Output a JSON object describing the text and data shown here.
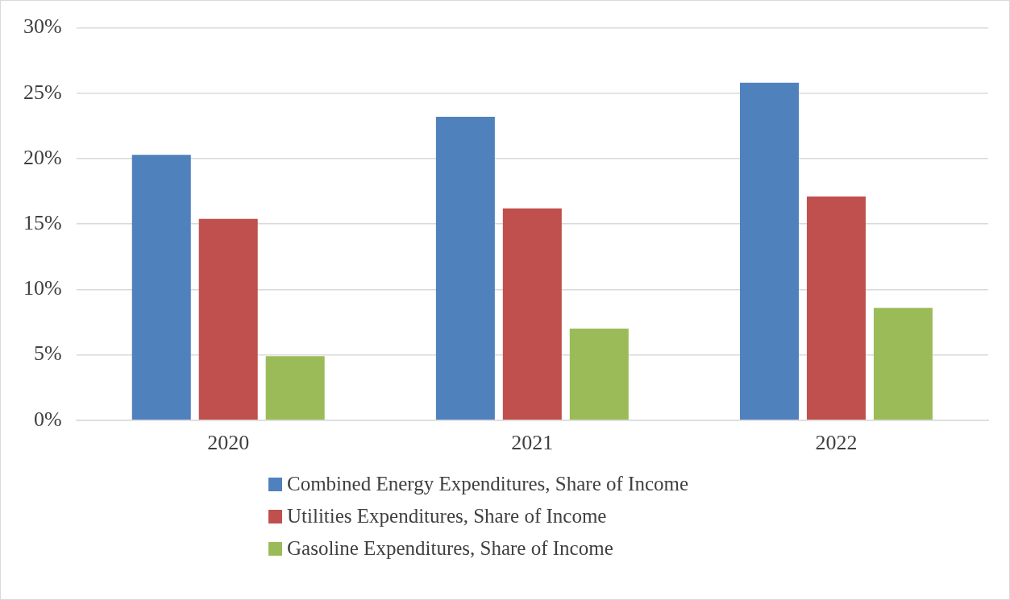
{
  "chart_data": {
    "type": "bar",
    "categories": [
      "2020",
      "2021",
      "2022"
    ],
    "series": [
      {
        "name": "Combined Energy Expenditures, Share of Income",
        "color": "#4f81bd",
        "values": [
          20.3,
          23.2,
          25.8
        ]
      },
      {
        "name": "Utilities Expenditures, Share of Income",
        "color": "#c0504d",
        "values": [
          15.4,
          16.2,
          17.1
        ]
      },
      {
        "name": "Gasoline Expenditures, Share of Income",
        "color": "#9bbb59",
        "values": [
          4.9,
          7.0,
          8.6
        ]
      }
    ],
    "ylim": [
      0,
      30
    ],
    "yticks": [
      {
        "value": 0,
        "label": "0%"
      },
      {
        "value": 5,
        "label": "5%"
      },
      {
        "value": 10,
        "label": "10%"
      },
      {
        "value": 15,
        "label": "15%"
      },
      {
        "value": 20,
        "label": "20%"
      },
      {
        "value": 25,
        "label": "25%"
      },
      {
        "value": 30,
        "label": "30%"
      }
    ],
    "grid": "y",
    "legend": "bottom"
  }
}
